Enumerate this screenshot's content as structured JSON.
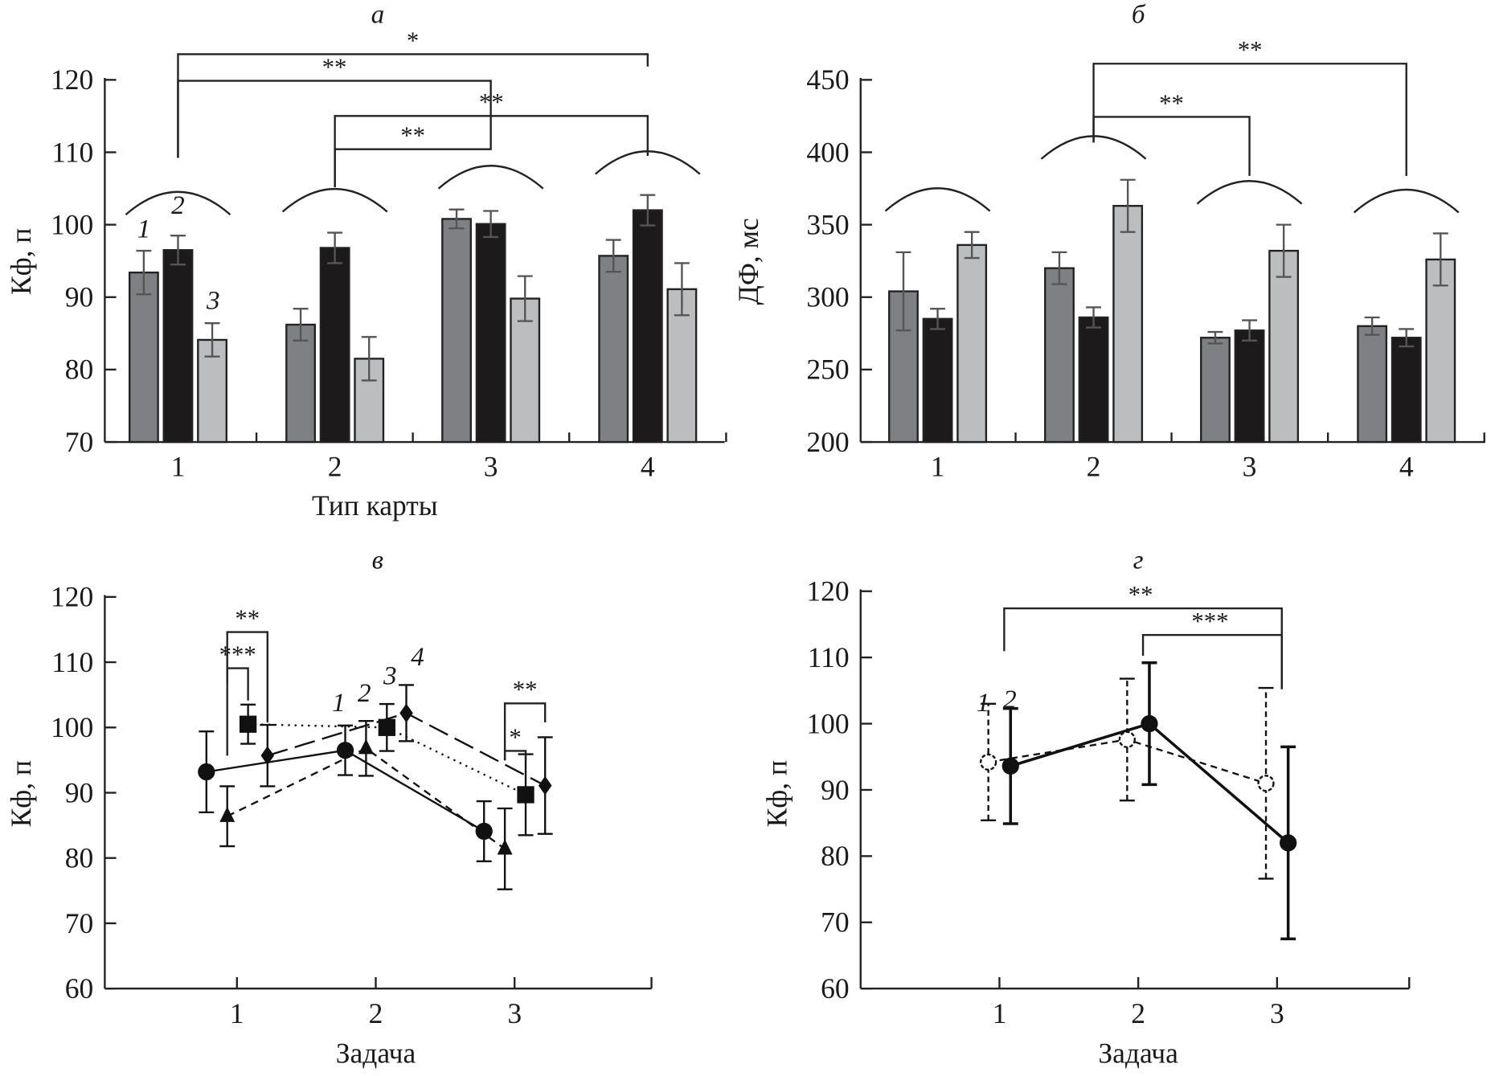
{
  "chart_data": [
    {
      "panel": "а",
      "type": "bar",
      "title": "а",
      "xlabel": "Тип карты",
      "ylabel": "Кф, п",
      "ylim": [
        70,
        120
      ],
      "yticks": [
        70,
        80,
        90,
        100,
        110,
        120
      ],
      "categories": [
        "1",
        "2",
        "3",
        "4"
      ],
      "series": [
        {
          "name": "1",
          "color": "#7f8083",
          "values": [
            93.4,
            86.2,
            100.8,
            95.7
          ],
          "errors": [
            3.0,
            2.2,
            1.3,
            2.2
          ]
        },
        {
          "name": "2",
          "color": "#1c1a1b",
          "values": [
            96.5,
            96.8,
            100.1,
            102.0
          ],
          "errors": [
            2.0,
            2.1,
            1.8,
            2.1
          ]
        },
        {
          "name": "3",
          "color": "#bcbdbf",
          "values": [
            84.1,
            81.5,
            89.8,
            91.1
          ],
          "errors": [
            2.3,
            3.0,
            3.1,
            3.6
          ]
        }
      ],
      "brackets": [
        {
          "from": 1,
          "to": 4,
          "label": "*"
        },
        {
          "from": 1,
          "to": 3,
          "label": "**"
        },
        {
          "from": 2,
          "to": 4,
          "label": "**"
        },
        {
          "from": 2,
          "to": 3,
          "label": "**"
        }
      ]
    },
    {
      "panel": "б",
      "type": "bar",
      "title": "б",
      "xlabel": "",
      "ylabel": "ДФ, мс",
      "ylim": [
        200,
        450
      ],
      "yticks": [
        200,
        250,
        300,
        350,
        400,
        450
      ],
      "categories": [
        "1",
        "2",
        "3",
        "4"
      ],
      "series": [
        {
          "color": "#7f8083",
          "values": [
            304,
            320,
            272,
            280
          ],
          "errors": [
            27,
            11,
            4,
            6
          ]
        },
        {
          "color": "#1c1a1b",
          "values": [
            285,
            286,
            277,
            272
          ],
          "errors": [
            7,
            7,
            7,
            6
          ]
        },
        {
          "color": "#bcbdbf",
          "values": [
            336,
            363,
            332,
            326
          ],
          "errors": [
            9,
            18,
            18,
            18
          ]
        }
      ],
      "brackets": [
        {
          "from": 2,
          "to": 4,
          "label": "**"
        },
        {
          "from": 2,
          "to": 3,
          "label": "**"
        }
      ]
    },
    {
      "panel": "в",
      "type": "line",
      "title": "в",
      "xlabel": "Задача",
      "ylabel": "Кф, п",
      "ylim": [
        60,
        120
      ],
      "yticks": [
        60,
        70,
        80,
        90,
        100,
        110,
        120
      ],
      "categories": [
        "1",
        "2",
        "3"
      ],
      "series": [
        {
          "name": "1",
          "marker": "circle",
          "line": "solid",
          "values": [
            93.2,
            96.5,
            84.1
          ],
          "errors": [
            6.2,
            3.8,
            4.6
          ]
        },
        {
          "name": "2",
          "marker": "triangle",
          "line": "short-dash",
          "values": [
            86.4,
            96.8,
            81.4
          ],
          "errors": [
            4.6,
            4.2,
            6.2
          ]
        },
        {
          "name": "3",
          "marker": "square",
          "line": "dotted",
          "values": [
            100.5,
            100.0,
            89.7
          ],
          "errors": [
            3.0,
            3.6,
            6.2
          ]
        },
        {
          "name": "4",
          "marker": "diamond",
          "line": "long-dash",
          "values": [
            95.7,
            102.2,
            91.1
          ],
          "errors": [
            4.7,
            4.3,
            7.4
          ]
        }
      ],
      "brackets": [
        {
          "task": 1,
          "series": [
            2,
            3
          ],
          "label": "***"
        },
        {
          "task": 1,
          "series": [
            2,
            4
          ],
          "label": "**"
        },
        {
          "task": 3,
          "series": [
            2,
            3
          ],
          "label": "*"
        },
        {
          "task": 3,
          "series": [
            2,
            4
          ],
          "label": "**"
        }
      ]
    },
    {
      "panel": "г",
      "type": "line",
      "title": "г",
      "xlabel": "Задача",
      "ylabel": "Кф, п",
      "ylim": [
        60,
        120
      ],
      "yticks": [
        60,
        70,
        80,
        90,
        100,
        110,
        120
      ],
      "categories": [
        "1",
        "2",
        "3"
      ],
      "series": [
        {
          "name": "1",
          "marker": "open-circle",
          "line": "dashed",
          "values": [
            94.2,
            97.6,
            91.0
          ],
          "errors": [
            8.8,
            9.2,
            14.4
          ]
        },
        {
          "name": "2",
          "marker": "circle",
          "line": "solid",
          "values": [
            93.6,
            100.0,
            82.0
          ],
          "errors": [
            8.7,
            9.2,
            14.5
          ]
        }
      ],
      "brackets": [
        {
          "from": 1,
          "to": 3,
          "label": "**"
        },
        {
          "from": 2,
          "to": 3,
          "label": "***"
        }
      ]
    }
  ]
}
